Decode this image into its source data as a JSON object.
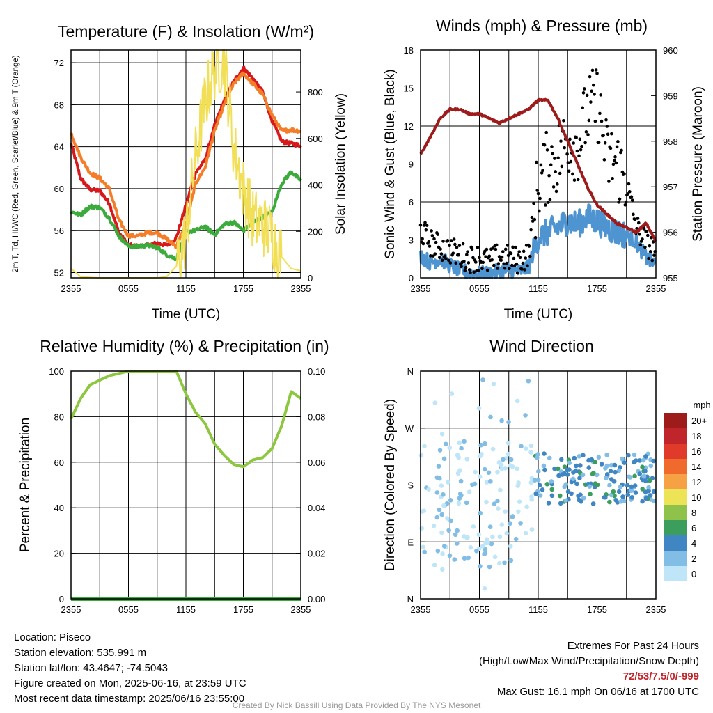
{
  "chart_data": [
    {
      "type": "line",
      "title": "Temperature (F) & Insolation (W/m²)",
      "xlabel": "Time (UTC)",
      "ylabel": "2m T, Td, HI/WC (Red, Green, Scarlet/Blue) & 9m T (Orange)",
      "ylabel_right": "Solar Insolation (Yellow)",
      "x_ticks": [
        "2355",
        "0555",
        "1155",
        "1755",
        "2355"
      ],
      "y_ticks": [
        52,
        56,
        60,
        64,
        68,
        72
      ],
      "y2_ticks": [
        0,
        200,
        400,
        600,
        800
      ],
      "ylim": [
        51.5,
        73.2
      ],
      "y2lim": [
        0,
        980
      ],
      "grid": true,
      "series": [
        {
          "name": "2m T",
          "color": "#d7191c",
          "axis": "left",
          "x": [
            0,
            1,
            2,
            3,
            4,
            5,
            6,
            7,
            8,
            9,
            10,
            11,
            12,
            13,
            14,
            15,
            16,
            17,
            18,
            19,
            20,
            21,
            22,
            23,
            24
          ],
          "values": [
            64.3,
            61.0,
            59.9,
            59.8,
            58.6,
            55.8,
            54.6,
            54.5,
            54.6,
            54.8,
            54.6,
            55.3,
            58.4,
            61.5,
            62.7,
            66.0,
            68.4,
            70.2,
            71.5,
            70.5,
            69.2,
            66.5,
            64.5,
            64.3,
            64.1
          ]
        },
        {
          "name": "9m T",
          "color": "#f47d2a",
          "axis": "left",
          "x": [
            0,
            1,
            2,
            3,
            4,
            5,
            6,
            7,
            8,
            9,
            10,
            11,
            12,
            13,
            14,
            15,
            16,
            17,
            18,
            19,
            20,
            21,
            22,
            23,
            24
          ],
          "values": [
            65.3,
            63.0,
            61.5,
            61.0,
            60.0,
            57.0,
            55.5,
            55.5,
            55.8,
            55.8,
            55.2,
            54.5,
            56.5,
            60.5,
            62.0,
            65.5,
            68.0,
            70.0,
            71.0,
            70.0,
            69.0,
            67.0,
            65.5,
            65.6,
            65.5
          ]
        },
        {
          "name": "Td",
          "color": "#3bab3b",
          "axis": "left",
          "x": [
            0,
            1,
            2,
            3,
            4,
            5,
            6,
            7,
            8,
            9,
            10,
            11,
            12,
            13,
            14,
            15,
            16,
            17,
            18,
            19,
            20,
            21,
            22,
            23,
            24
          ],
          "values": [
            57.8,
            57.5,
            58.3,
            58.2,
            57.2,
            55.5,
            54.5,
            54.5,
            54.6,
            54.4,
            53.7,
            53.3,
            55.9,
            56.0,
            56.4,
            55.6,
            56.6,
            56.8,
            56.0,
            56.8,
            57.3,
            57.8,
            60.5,
            61.6,
            60.8
          ]
        },
        {
          "name": "Solar Insolation",
          "color": "#f2df58",
          "axis": "right",
          "x": [
            0,
            1,
            2,
            3,
            4,
            5,
            6,
            7,
            8,
            9,
            10,
            11,
            12,
            13,
            14,
            15,
            16,
            17,
            18,
            19,
            20,
            21,
            22,
            23,
            24
          ],
          "values": [
            40,
            5,
            2,
            0,
            0,
            0,
            0,
            0,
            0,
            0,
            5,
            50,
            180,
            520,
            760,
            900,
            940,
            560,
            380,
            250,
            230,
            180,
            90,
            40,
            30
          ]
        }
      ]
    },
    {
      "type": "line",
      "title": "Winds (mph) & Pressure (mb)",
      "xlabel": "Time (UTC)",
      "ylabel": "Sonic Wind & Gust (Blue, Black)",
      "ylabel_right": "Station Pressure (Maroon)",
      "x_ticks": [
        "2355",
        "0555",
        "1155",
        "1755",
        "2355"
      ],
      "y_ticks": [
        0,
        3,
        6,
        9,
        12,
        15,
        18
      ],
      "y2_ticks": [
        955,
        956,
        957,
        958,
        959,
        960
      ],
      "ylim": [
        0,
        18
      ],
      "y2lim": [
        955,
        960
      ],
      "grid": true,
      "series": [
        {
          "name": "Sonic Wind",
          "color": "#4e94d0",
          "axis": "left",
          "x": [
            0,
            1,
            2,
            3,
            4,
            5,
            6,
            7,
            8,
            9,
            10,
            11,
            12,
            13,
            14,
            15,
            16,
            17,
            18,
            19,
            20,
            21,
            22,
            23,
            24
          ],
          "values": [
            1.8,
            1.2,
            1.5,
            1.0,
            0.6,
            0.4,
            0.3,
            0.3,
            0.5,
            0.6,
            0.5,
            0.8,
            3.2,
            3.6,
            4.0,
            4.5,
            4.2,
            4.8,
            4.5,
            4.0,
            3.6,
            3.4,
            2.8,
            1.6,
            1.0
          ]
        },
        {
          "name": "Gust",
          "color": "#000000",
          "axis": "left",
          "x": [
            0,
            1,
            2,
            3,
            4,
            5,
            6,
            7,
            8,
            9,
            10,
            11,
            12,
            13,
            14,
            15,
            16,
            17,
            18,
            19,
            20,
            21,
            22,
            23,
            24
          ],
          "values": [
            3.8,
            2.8,
            2.4,
            2.2,
            1.8,
            1.5,
            1.6,
            1.2,
            1.7,
            1.5,
            1.4,
            1.8,
            7.5,
            8.8,
            9.5,
            11.0,
            10.5,
            13.0,
            14.0,
            9.5,
            9.0,
            7.5,
            4.0,
            2.8,
            2.0
          ]
        },
        {
          "name": "Station Pressure",
          "color": "#9e1b1b",
          "axis": "right",
          "x": [
            0,
            1,
            2,
            3,
            4,
            5,
            6,
            7,
            8,
            9,
            10,
            11,
            12,
            13,
            14,
            15,
            16,
            17,
            18,
            19,
            20,
            21,
            22,
            23,
            24
          ],
          "values": [
            957.7,
            958.1,
            958.5,
            958.7,
            958.7,
            958.6,
            958.6,
            958.5,
            958.4,
            958.5,
            958.6,
            958.7,
            958.9,
            958.9,
            958.5,
            958.0,
            957.5,
            957.0,
            956.6,
            956.4,
            956.2,
            956.1,
            956.0,
            956.2,
            955.8
          ]
        }
      ]
    },
    {
      "type": "line",
      "title": "Relative Humidity (%) & Precipitation (in)",
      "xlabel": "",
      "ylabel": "Percent & Precipitation",
      "x_ticks": [
        "2355",
        "0555",
        "1155",
        "1755",
        "2355"
      ],
      "y_ticks": [
        0,
        20,
        40,
        60,
        80,
        100
      ],
      "y2_ticks": [
        "0.00",
        "0.02",
        "0.04",
        "0.06",
        "0.08",
        "0.10"
      ],
      "ylim": [
        0,
        100
      ],
      "y2lim": [
        0,
        0.1
      ],
      "grid": true,
      "series": [
        {
          "name": "Relative Humidity",
          "color": "#8dc63f",
          "axis": "left",
          "x": [
            0,
            1,
            2,
            3,
            4,
            5,
            6,
            7,
            8,
            9,
            10,
            11,
            12,
            13,
            14,
            15,
            16,
            17,
            18,
            19,
            20,
            21,
            22,
            23,
            24
          ],
          "values": [
            79,
            88,
            94,
            96,
            98,
            99,
            100,
            100,
            100,
            100,
            100,
            100,
            90,
            82,
            77,
            68,
            63,
            59,
            58,
            61,
            62,
            66,
            76,
            91,
            88
          ]
        },
        {
          "name": "Precipitation",
          "color": "#3bab3b",
          "axis": "right",
          "x": [
            0,
            24
          ],
          "values": [
            0,
            0
          ]
        }
      ]
    },
    {
      "type": "scatter",
      "title": "Wind Direction",
      "xlabel": "",
      "ylabel": "Direction (Colored By Speed)",
      "x_ticks": [
        "2355",
        "0555",
        "1155",
        "1755",
        "2355"
      ],
      "y_ticks": [
        "N",
        "E",
        "S",
        "W",
        "N"
      ],
      "ylim": [
        0,
        360
      ],
      "grid": true,
      "legend": {
        "title": "mph",
        "labels": [
          "20+",
          "18",
          "16",
          "14",
          "12",
          "10",
          "8",
          "6",
          "4",
          "2",
          "0"
        ],
        "colors": [
          "#9e1b1b",
          "#c0252c",
          "#e03b2a",
          "#f06a2d",
          "#f7a145",
          "#ece357",
          "#8ec24a",
          "#3b9e5d",
          "#3f86c3",
          "#82bde6",
          "#bfe6f8"
        ]
      }
    }
  ],
  "footer": {
    "location": "Location: Piseco",
    "elevation": "Station elevation: 535.991 m",
    "latlon": "Station lat/lon: 43.4647; -74.5043",
    "created": "Figure created on Mon, 2025-06-16, at 23:59 UTC",
    "recent": "Most recent data timestamp: 2025/06/16 23:55:00",
    "ext_title": "Extremes For Past 24 Hours",
    "ext_desc": "(High/Low/Max Wind/Precipitation/Snow Depth)",
    "ext_values": "72/53/7.5/0/-999",
    "max_gust": "Max Gust: 16.1 mph On 06/16 at 1700 UTC",
    "credit": "Created By Nick Bassill Using Data Provided By The NYS Mesonet"
  }
}
